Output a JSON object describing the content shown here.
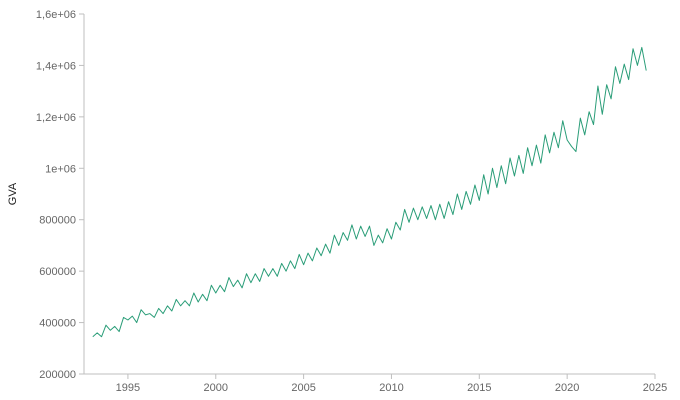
{
  "chart_data": {
    "type": "line",
    "title": "",
    "xlabel": "",
    "ylabel": "GVA",
    "xlim": [
      1992.5,
      2025
    ],
    "ylim": [
      200000,
      1600000
    ],
    "x_ticks": [
      1995,
      2000,
      2005,
      2010,
      2015,
      2020,
      2025
    ],
    "x_tick_labels": [
      "1995",
      "2000",
      "2005",
      "2010",
      "2015",
      "2020",
      "2025"
    ],
    "y_ticks": [
      200000,
      400000,
      600000,
      800000,
      1000000,
      1200000,
      1400000,
      1600000
    ],
    "y_tick_labels": [
      "200000",
      "400000",
      "600000",
      "800000",
      "1e+06",
      "1,2e+06",
      "1,4e+06",
      "1,6e+06"
    ],
    "grid": false,
    "legend": "none",
    "series": [
      {
        "color": "#2a9d78",
        "x": [
          1993.0,
          1993.25,
          1993.5,
          1993.75,
          1994.0,
          1994.25,
          1994.5,
          1994.75,
          1995.0,
          1995.25,
          1995.5,
          1995.75,
          1996.0,
          1996.25,
          1996.5,
          1996.75,
          1997.0,
          1997.25,
          1997.5,
          1997.75,
          1998.0,
          1998.25,
          1998.5,
          1998.75,
          1999.0,
          1999.25,
          1999.5,
          1999.75,
          2000.0,
          2000.25,
          2000.5,
          2000.75,
          2001.0,
          2001.25,
          2001.5,
          2001.75,
          2002.0,
          2002.25,
          2002.5,
          2002.75,
          2003.0,
          2003.25,
          2003.5,
          2003.75,
          2004.0,
          2004.25,
          2004.5,
          2004.75,
          2005.0,
          2005.25,
          2005.5,
          2005.75,
          2006.0,
          2006.25,
          2006.5,
          2006.75,
          2007.0,
          2007.25,
          2007.5,
          2007.75,
          2008.0,
          2008.25,
          2008.5,
          2008.75,
          2009.0,
          2009.25,
          2009.5,
          2009.75,
          2010.0,
          2010.25,
          2010.5,
          2010.75,
          2011.0,
          2011.25,
          2011.5,
          2011.75,
          2012.0,
          2012.25,
          2012.5,
          2012.75,
          2013.0,
          2013.25,
          2013.5,
          2013.75,
          2014.0,
          2014.25,
          2014.5,
          2014.75,
          2015.0,
          2015.25,
          2015.5,
          2015.75,
          2016.0,
          2016.25,
          2016.5,
          2016.75,
          2017.0,
          2017.25,
          2017.5,
          2017.75,
          2018.0,
          2018.25,
          2018.5,
          2018.75,
          2019.0,
          2019.25,
          2019.5,
          2019.75,
          2020.0,
          2020.25,
          2020.5,
          2020.75,
          2021.0,
          2021.25,
          2021.5,
          2021.75,
          2022.0,
          2022.25,
          2022.5,
          2022.75,
          2023.0,
          2023.25,
          2023.5,
          2023.75,
          2024.0,
          2024.25,
          2024.5
        ],
        "y": [
          345000,
          360000,
          345000,
          390000,
          370000,
          385000,
          365000,
          420000,
          410000,
          425000,
          400000,
          450000,
          430000,
          435000,
          420000,
          455000,
          435000,
          465000,
          445000,
          490000,
          465000,
          485000,
          465000,
          515000,
          480000,
          510000,
          485000,
          545000,
          515000,
          545000,
          520000,
          575000,
          540000,
          565000,
          535000,
          590000,
          555000,
          590000,
          560000,
          610000,
          580000,
          610000,
          580000,
          630000,
          600000,
          640000,
          610000,
          665000,
          625000,
          670000,
          640000,
          690000,
          660000,
          705000,
          670000,
          740000,
          700000,
          750000,
          720000,
          780000,
          725000,
          775000,
          735000,
          775000,
          700000,
          740000,
          710000,
          765000,
          725000,
          790000,
          760000,
          840000,
          790000,
          845000,
          800000,
          850000,
          805000,
          855000,
          800000,
          860000,
          805000,
          870000,
          820000,
          900000,
          840000,
          910000,
          860000,
          935000,
          875000,
          975000,
          900000,
          1000000,
          925000,
          1010000,
          940000,
          1040000,
          970000,
          1050000,
          980000,
          1080000,
          1010000,
          1090000,
          1020000,
          1130000,
          1060000,
          1140000,
          1080000,
          1185000,
          1110000,
          1085000,
          1065000,
          1195000,
          1130000,
          1220000,
          1170000,
          1320000,
          1210000,
          1325000,
          1270000,
          1395000,
          1330000,
          1405000,
          1345000,
          1465000,
          1400000,
          1470000,
          1380000
        ]
      }
    ]
  }
}
